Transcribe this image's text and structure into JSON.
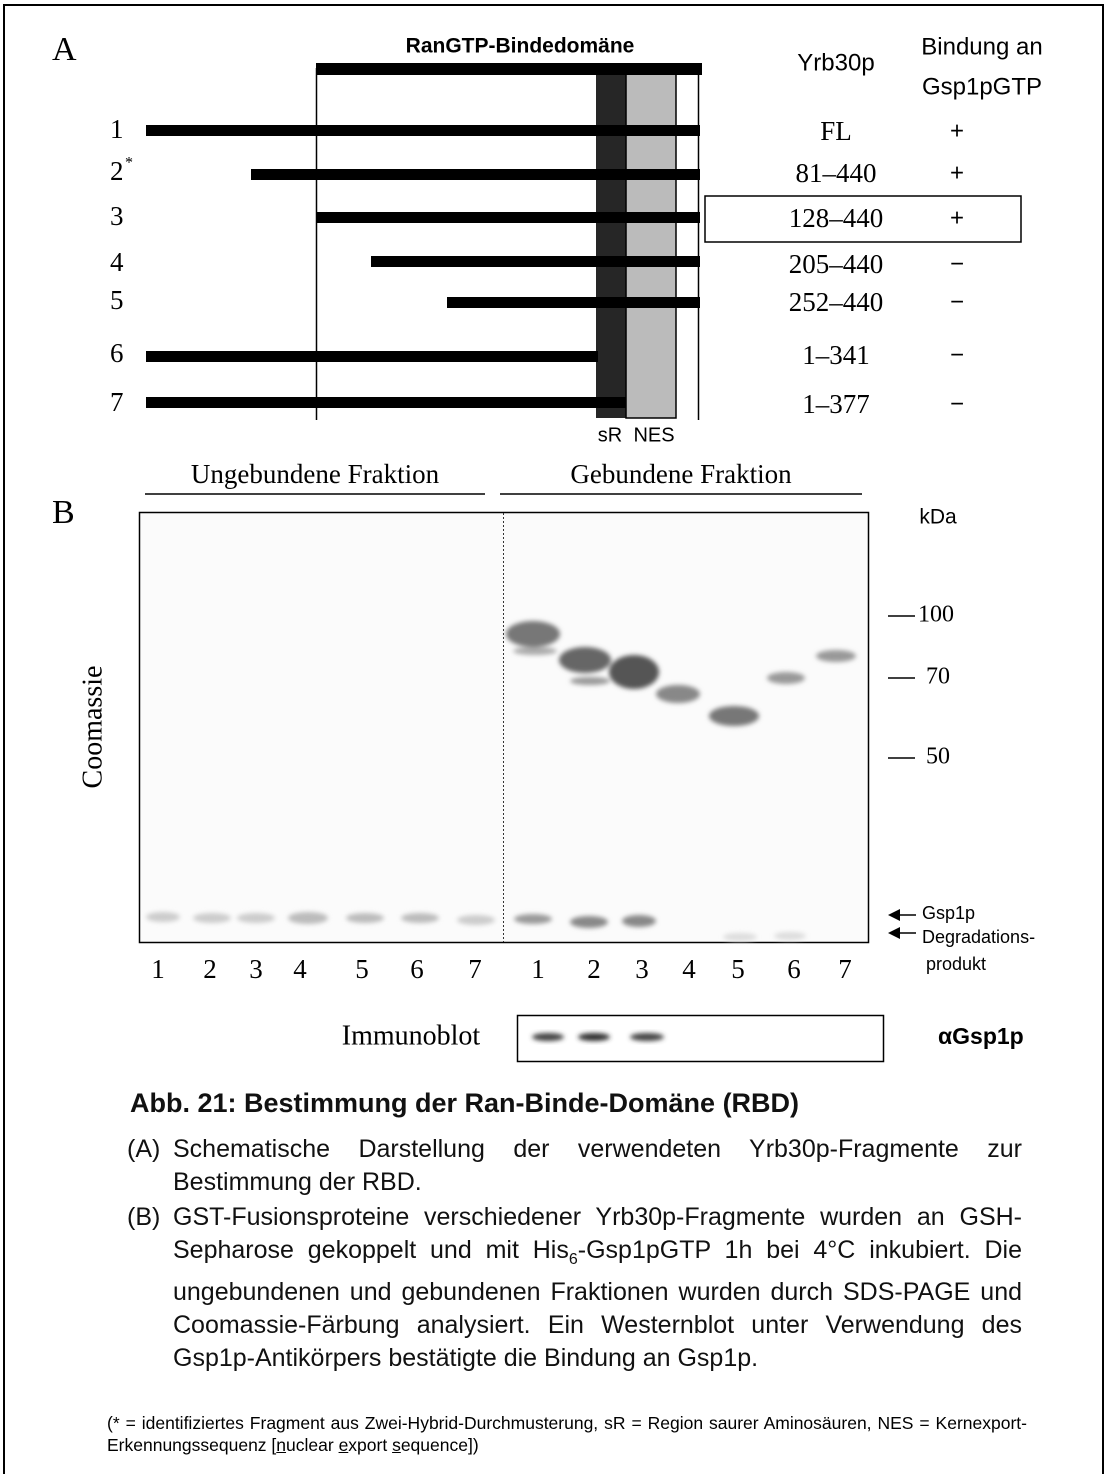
{
  "panel_a": {
    "label": "A",
    "domain_title": "RanGTP-Bindedomäne",
    "col_fragment": "Yrb30p",
    "col_binding": [
      "Bindung an",
      "Gsp1pGTP"
    ],
    "rows": [
      {
        "num": "1",
        "range": "FL",
        "binding": "+"
      },
      {
        "num": "2",
        "mark": "*",
        "range": "81–440",
        "binding": "+"
      },
      {
        "num": "3",
        "range": "128–440",
        "binding": "+"
      },
      {
        "num": "4",
        "range": "205–440",
        "binding": "−"
      },
      {
        "num": "5",
        "range": "252–440",
        "binding": "−"
      },
      {
        "num": "6",
        "range": "1–341",
        "binding": "−"
      },
      {
        "num": "7",
        "range": "1–377",
        "binding": "−"
      }
    ],
    "region_labels": [
      "sR",
      "NES"
    ]
  },
  "panel_b": {
    "label": "B",
    "unbound_title": "Ungebundene Fraktion",
    "bound_title": "Gebundene Fraktion",
    "stain": "Coomassie",
    "unit": "kDa",
    "markers": [
      "100",
      "70",
      "50"
    ],
    "unbound_lanes": [
      "1",
      "2",
      "3",
      "4",
      "5",
      "6",
      "7"
    ],
    "bound_lanes": [
      "1",
      "2",
      "3",
      "4",
      "5",
      "6",
      "7"
    ],
    "arrows": [
      "Gsp1p",
      "Degradations-",
      "produkt"
    ],
    "blot_label": "Immunoblot",
    "antibody": "αGsp1p"
  },
  "caption": {
    "title": "Abb. 21: Bestimmung der Ran-Binde-Domäne (RBD)",
    "a_label": "(A)",
    "a_text": "Schematische Darstellung der verwendeten Yrb30p-Fragmente zur Bestimmung der RBD.",
    "b_label": "(B)",
    "b_text": [
      "GST-Fusionsproteine verschiedener Yrb30p-Fragmente wurden an GSH-Sepharose gekoppelt und mit His",
      "6",
      "-Gsp1pGTP 1h bei 4°C inkubiert. Die ungebundenen und gebundenen Fraktionen wurden durch SDS-PAGE und Coomassie-Färbung analysiert. Ein Westernblot unter Verwendung des Gsp1p-Antikörpers bestätigte die Bindung an Gsp1p."
    ],
    "footnote": [
      "(* = identifiziertes Fragment aus Zwei-Hybrid-Durchmusterung, sR = Region saurer Aminosäuren, NES = Kernexport-Erkennungssequenz [",
      "n",
      "uclear ",
      "e",
      "xport ",
      "s",
      "equence])"
    ]
  }
}
